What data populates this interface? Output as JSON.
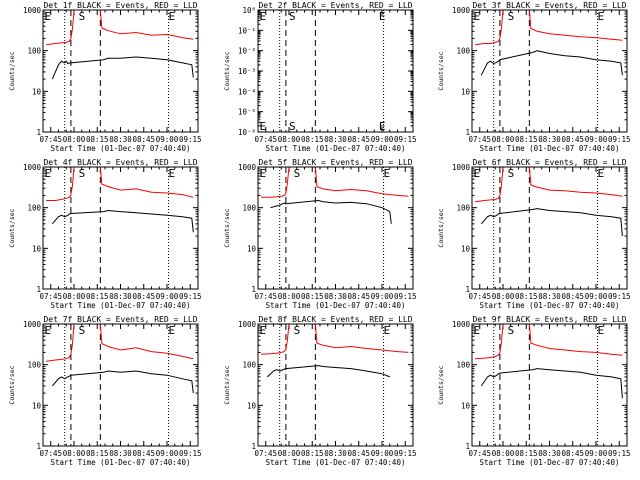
{
  "figure": {
    "time_ticks": [
      "07:45",
      "08:00",
      "08:15",
      "08:30",
      "08:45",
      "09:00",
      "09:15"
    ],
    "time_values_min": [
      -15,
      0,
      15,
      30,
      45,
      60,
      75
    ],
    "xlabel": "Start Time (01-Dec-07 07:40:40)",
    "ylabel": "Counts/sec",
    "series_colors": {
      "Events": "#000000",
      "LLD": "#ff0000"
    }
  },
  "chart_data": [
    {
      "type": "line",
      "title": "Det 1f BLACK = Events, RED = LLD",
      "yscale": "log",
      "ylim": [
        1,
        1000
      ],
      "yticks": [
        "1",
        "10",
        "100",
        "1000"
      ],
      "ytick_values": [
        1,
        10,
        100,
        1000
      ],
      "xlim_min": [
        -20,
        80
      ],
      "markers": [
        "E",
        "S",
        "E"
      ],
      "marker_x_min": [
        -19,
        3,
        61
      ],
      "dotted_lines_min": [
        -6,
        61
      ],
      "dashed_lines_min": [
        -2,
        17
      ],
      "series": [
        {
          "name": "LLD",
          "color": "#ff0000",
          "x": [
            -18,
            -12,
            -8,
            -5,
            -3,
            -2,
            -1,
            0,
            17,
            18,
            22,
            30,
            40,
            50,
            60,
            70,
            77
          ],
          "y": [
            140,
            150,
            155,
            160,
            170,
            200,
            350,
            1000,
            1000,
            360,
            310,
            260,
            280,
            240,
            250,
            210,
            190
          ]
        },
        {
          "name": "Events",
          "color": "#000000",
          "x": [
            -14,
            -10,
            -8,
            -7,
            -6,
            -5,
            -4,
            -3,
            -2,
            19,
            22,
            30,
            40,
            50,
            60,
            70,
            76,
            77
          ],
          "y": [
            20,
            45,
            55,
            52,
            50,
            55,
            48,
            50,
            50,
            60,
            65,
            65,
            70,
            65,
            60,
            50,
            45,
            22
          ]
        }
      ]
    },
    {
      "type": "line",
      "title": "Det 2f BLACK = Events, RED = LLD",
      "yscale": "log",
      "ylim": [
        1e-06,
        1
      ],
      "yticks": [
        "10⁻⁶",
        "10⁻⁵",
        "10⁻⁴",
        "10⁻³",
        "10⁻²",
        "10⁻¹",
        "10⁰"
      ],
      "ytick_values": [
        1e-06,
        1e-05,
        0.0001,
        0.001,
        0.01,
        0.1,
        1
      ],
      "xlim_min": [
        -20,
        80
      ],
      "markers": [
        "E",
        "S",
        "E"
      ],
      "marker_x_min": [
        -19,
        0,
        58
      ],
      "dotted_lines_min": [
        -6,
        61
      ],
      "dashed_lines_min": [
        -2,
        17
      ],
      "series": []
    },
    {
      "type": "line",
      "title": "Det 3f BLACK = Events, RED = LLD",
      "yscale": "log",
      "ylim": [
        1,
        1000
      ],
      "yticks": [
        "1",
        "10",
        "100",
        "1000"
      ],
      "ytick_values": [
        1,
        10,
        100,
        1000
      ],
      "xlim_min": [
        -20,
        80
      ],
      "markers": [
        "E",
        "S",
        "E"
      ],
      "marker_x_min": [
        -19,
        3,
        61
      ],
      "dotted_lines_min": [
        -6,
        61
      ],
      "dashed_lines_min": [
        -2,
        17
      ],
      "series": [
        {
          "name": "LLD",
          "color": "#ff0000",
          "x": [
            -18,
            -12,
            -8,
            -5,
            -3,
            -2,
            -1,
            0,
            17,
            18,
            22,
            30,
            40,
            50,
            60,
            70,
            77
          ],
          "y": [
            140,
            150,
            150,
            160,
            170,
            200,
            350,
            1000,
            1000,
            350,
            300,
            260,
            240,
            220,
            210,
            190,
            180
          ]
        },
        {
          "name": "Events",
          "color": "#000000",
          "x": [
            -14,
            -10,
            -8,
            -6,
            -5,
            -4,
            -3,
            -2,
            19,
            22,
            30,
            40,
            50,
            60,
            70,
            76,
            77
          ],
          "y": [
            25,
            50,
            55,
            48,
            50,
            52,
            55,
            60,
            90,
            100,
            85,
            75,
            70,
            60,
            55,
            50,
            25
          ]
        }
      ]
    },
    {
      "type": "line",
      "title": "Det 4f BLACK = Events, RED = LLD",
      "yscale": "log",
      "ylim": [
        1,
        1000
      ],
      "yticks": [
        "1",
        "10",
        "100",
        "1000"
      ],
      "ytick_values": [
        1,
        10,
        100,
        1000
      ],
      "xlim_min": [
        -20,
        80
      ],
      "markers": [
        "E",
        "S",
        "E"
      ],
      "marker_x_min": [
        -19,
        3,
        61
      ],
      "dotted_lines_min": [
        -6,
        61
      ],
      "dashed_lines_min": [
        -2,
        17
      ],
      "series": [
        {
          "name": "LLD",
          "color": "#ff0000",
          "x": [
            -18,
            -12,
            -8,
            -5,
            -3,
            -2,
            -1,
            0,
            17,
            18,
            22,
            30,
            40,
            50,
            60,
            70,
            77
          ],
          "y": [
            150,
            150,
            160,
            170,
            180,
            210,
            350,
            1000,
            1000,
            380,
            330,
            270,
            290,
            240,
            230,
            210,
            180
          ]
        },
        {
          "name": "Events",
          "color": "#000000",
          "x": [
            -14,
            -10,
            -8,
            -6,
            -5,
            -4,
            -3,
            -2,
            19,
            22,
            30,
            40,
            50,
            60,
            70,
            76,
            77
          ],
          "y": [
            40,
            60,
            65,
            60,
            62,
            65,
            70,
            72,
            80,
            85,
            80,
            75,
            70,
            65,
            60,
            55,
            25
          ]
        }
      ]
    },
    {
      "type": "line",
      "title": "Det 5f BLACK = Events, RED = LLD",
      "yscale": "log",
      "ylim": [
        1,
        1000
      ],
      "yticks": [
        "1",
        "10",
        "100",
        "1000"
      ],
      "ytick_values": [
        1,
        10,
        100,
        1000
      ],
      "xlim_min": [
        -20,
        80
      ],
      "markers": [
        "E",
        "S",
        "E"
      ],
      "marker_x_min": [
        -19,
        3,
        61
      ],
      "dotted_lines_min": [
        -6,
        61
      ],
      "dashed_lines_min": [
        -2,
        17
      ],
      "series": [
        {
          "name": "LLD",
          "color": "#ff0000",
          "x": [
            -18,
            -12,
            -8,
            -5,
            -3,
            -2,
            -1,
            0,
            17,
            18,
            22,
            30,
            40,
            50,
            60,
            70,
            77
          ],
          "y": [
            180,
            180,
            185,
            190,
            200,
            230,
            400,
            1000,
            1000,
            330,
            290,
            260,
            280,
            260,
            220,
            200,
            190
          ]
        },
        {
          "name": "Events",
          "color": "#000000",
          "x": [
            -12,
            -8,
            -6,
            -5,
            -4,
            -3,
            -2,
            19,
            22,
            30,
            40,
            50,
            60,
            65,
            66
          ],
          "y": [
            100,
            110,
            115,
            120,
            125,
            130,
            125,
            150,
            140,
            130,
            135,
            125,
            100,
            80,
            40
          ]
        }
      ]
    },
    {
      "type": "line",
      "title": "Det 6f BLACK = Events, RED = LLD",
      "yscale": "log",
      "ylim": [
        1,
        1000
      ],
      "yticks": [
        "1",
        "10",
        "100",
        "1000"
      ],
      "ytick_values": [
        1,
        10,
        100,
        1000
      ],
      "xlim_min": [
        -20,
        80
      ],
      "markers": [
        "E",
        "S",
        "E"
      ],
      "marker_x_min": [
        -19,
        3,
        61
      ],
      "dotted_lines_min": [
        -6,
        61
      ],
      "dashed_lines_min": [
        -2,
        17
      ],
      "series": [
        {
          "name": "LLD",
          "color": "#ff0000",
          "x": [
            -18,
            -12,
            -8,
            -5,
            -3,
            -2,
            -1,
            0,
            17,
            18,
            22,
            30,
            40,
            50,
            60,
            70,
            77
          ],
          "y": [
            140,
            150,
            155,
            160,
            170,
            200,
            350,
            1000,
            1000,
            360,
            320,
            270,
            260,
            240,
            230,
            210,
            190
          ]
        },
        {
          "name": "Events",
          "color": "#000000",
          "x": [
            -14,
            -10,
            -8,
            -6,
            -5,
            -4,
            -3,
            -2,
            19,
            22,
            30,
            40,
            50,
            60,
            70,
            76,
            77
          ],
          "y": [
            40,
            60,
            65,
            60,
            62,
            65,
            70,
            72,
            90,
            95,
            85,
            80,
            75,
            65,
            60,
            55,
            20
          ]
        }
      ]
    },
    {
      "type": "line",
      "title": "Det 7f BLACK = Events, RED = LLD",
      "yscale": "log",
      "ylim": [
        1,
        1000
      ],
      "yticks": [
        "1",
        "10",
        "100",
        "1000"
      ],
      "ytick_values": [
        1,
        10,
        100,
        1000
      ],
      "xlim_min": [
        -20,
        80
      ],
      "markers": [
        "E",
        "S",
        "E"
      ],
      "marker_x_min": [
        -19,
        3,
        61
      ],
      "dotted_lines_min": [
        -6,
        61
      ],
      "dashed_lines_min": [
        -2,
        17
      ],
      "series": [
        {
          "name": "LLD",
          "color": "#ff0000",
          "x": [
            -18,
            -12,
            -8,
            -5,
            -3,
            -2,
            -1,
            0,
            17,
            18,
            22,
            30,
            40,
            50,
            60,
            70,
            77
          ],
          "y": [
            120,
            130,
            135,
            140,
            150,
            180,
            330,
            1000,
            1000,
            330,
            280,
            230,
            260,
            210,
            190,
            160,
            140
          ]
        },
        {
          "name": "Events",
          "color": "#000000",
          "x": [
            -14,
            -10,
            -8,
            -6,
            -5,
            -4,
            -3,
            -2,
            19,
            22,
            30,
            40,
            50,
            60,
            70,
            76,
            77
          ],
          "y": [
            30,
            45,
            50,
            45,
            48,
            50,
            52,
            55,
            65,
            70,
            65,
            70,
            60,
            55,
            45,
            40,
            20
          ]
        }
      ]
    },
    {
      "type": "line",
      "title": "Det 8f BLACK = Events, RED = LLD",
      "yscale": "log",
      "ylim": [
        1,
        1000
      ],
      "yticks": [
        "1",
        "10",
        "100",
        "1000"
      ],
      "ytick_values": [
        1,
        10,
        100,
        1000
      ],
      "xlim_min": [
        -20,
        80
      ],
      "markers": [
        "E",
        "S",
        "E"
      ],
      "marker_x_min": [
        -19,
        3,
        61
      ],
      "dotted_lines_min": [
        -6,
        61
      ],
      "dashed_lines_min": [
        -2,
        17
      ],
      "series": [
        {
          "name": "LLD",
          "color": "#ff0000",
          "x": [
            -18,
            -12,
            -8,
            -5,
            -3,
            -2,
            -1,
            0,
            17,
            18,
            22,
            30,
            40,
            50,
            60,
            70,
            77
          ],
          "y": [
            180,
            185,
            190,
            200,
            210,
            240,
            400,
            1000,
            1000,
            340,
            300,
            260,
            280,
            250,
            230,
            210,
            200
          ]
        },
        {
          "name": "Events",
          "color": "#000000",
          "x": [
            -14,
            -10,
            -8,
            -6,
            -5,
            -4,
            -3,
            -2,
            19,
            22,
            30,
            40,
            50,
            60,
            65
          ],
          "y": [
            50,
            70,
            75,
            70,
            72,
            75,
            78,
            80,
            95,
            90,
            85,
            80,
            70,
            60,
            50
          ]
        }
      ]
    },
    {
      "type": "line",
      "title": "Det 9f BLACK = Events, RED = LLD",
      "yscale": "log",
      "ylim": [
        1,
        1000
      ],
      "yticks": [
        "1",
        "10",
        "100",
        "1000"
      ],
      "ytick_values": [
        1,
        10,
        100,
        1000
      ],
      "xlim_min": [
        -20,
        80
      ],
      "markers": [
        "E",
        "S",
        "E"
      ],
      "marker_x_min": [
        -19,
        3,
        61
      ],
      "dotted_lines_min": [
        -6,
        61
      ],
      "dashed_lines_min": [
        -2,
        17
      ],
      "series": [
        {
          "name": "LLD",
          "color": "#ff0000",
          "x": [
            -18,
            -12,
            -8,
            -5,
            -3,
            -2,
            -1,
            0,
            17,
            18,
            22,
            30,
            40,
            50,
            60,
            70,
            77
          ],
          "y": [
            140,
            145,
            150,
            160,
            170,
            200,
            350,
            1000,
            1000,
            340,
            300,
            250,
            230,
            210,
            200,
            180,
            170
          ]
        },
        {
          "name": "Events",
          "color": "#000000",
          "x": [
            -14,
            -10,
            -8,
            -6,
            -5,
            -4,
            -3,
            -2,
            19,
            22,
            30,
            40,
            50,
            60,
            70,
            76,
            77
          ],
          "y": [
            30,
            50,
            55,
            50,
            52,
            55,
            60,
            62,
            75,
            80,
            75,
            70,
            65,
            55,
            50,
            45,
            15
          ]
        }
      ]
    }
  ]
}
